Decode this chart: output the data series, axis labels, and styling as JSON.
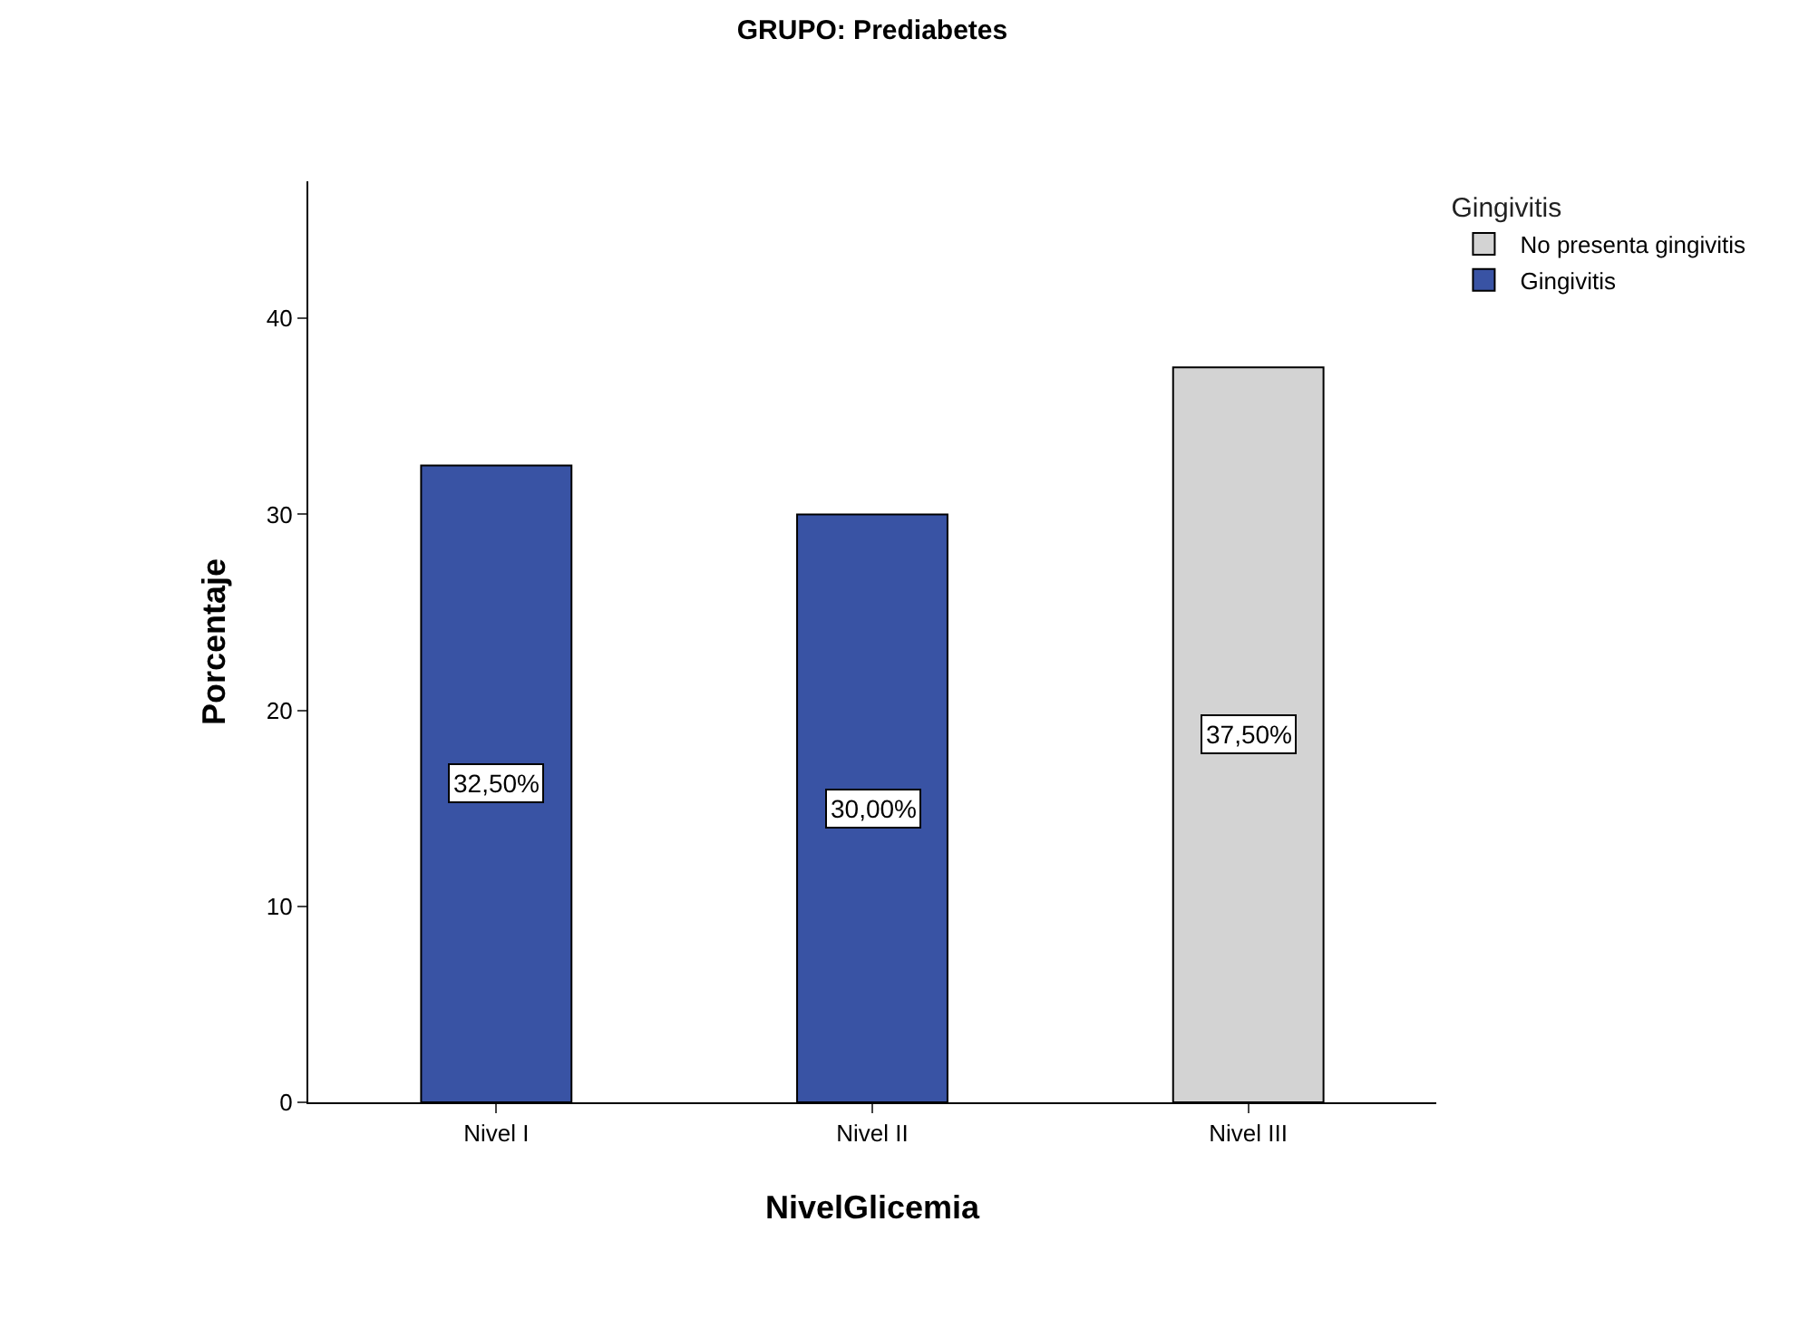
{
  "chart_data": {
    "type": "bar",
    "title": "GRUPO: Prediabetes",
    "xlabel": "NivelGlicemia",
    "ylabel": "Porcentaje",
    "legend_title": "Gingivitis",
    "categories": [
      "Nivel I",
      "Nivel II",
      "Nivel III"
    ],
    "series": [
      {
        "name": "No presenta gingivitis",
        "color": "#d3d3d3",
        "values": [
          null,
          null,
          37.5
        ],
        "value_labels": [
          null,
          null,
          "37,50%"
        ]
      },
      {
        "name": "Gingivitis",
        "color": "#3953a4",
        "values": [
          32.5,
          30,
          null
        ],
        "value_labels": [
          "32,50%",
          "30,00%",
          null
        ]
      }
    ],
    "ylim": [
      0,
      47
    ],
    "yticks": [
      0,
      10,
      20,
      30,
      40
    ],
    "grid": false,
    "legend": "top right"
  }
}
